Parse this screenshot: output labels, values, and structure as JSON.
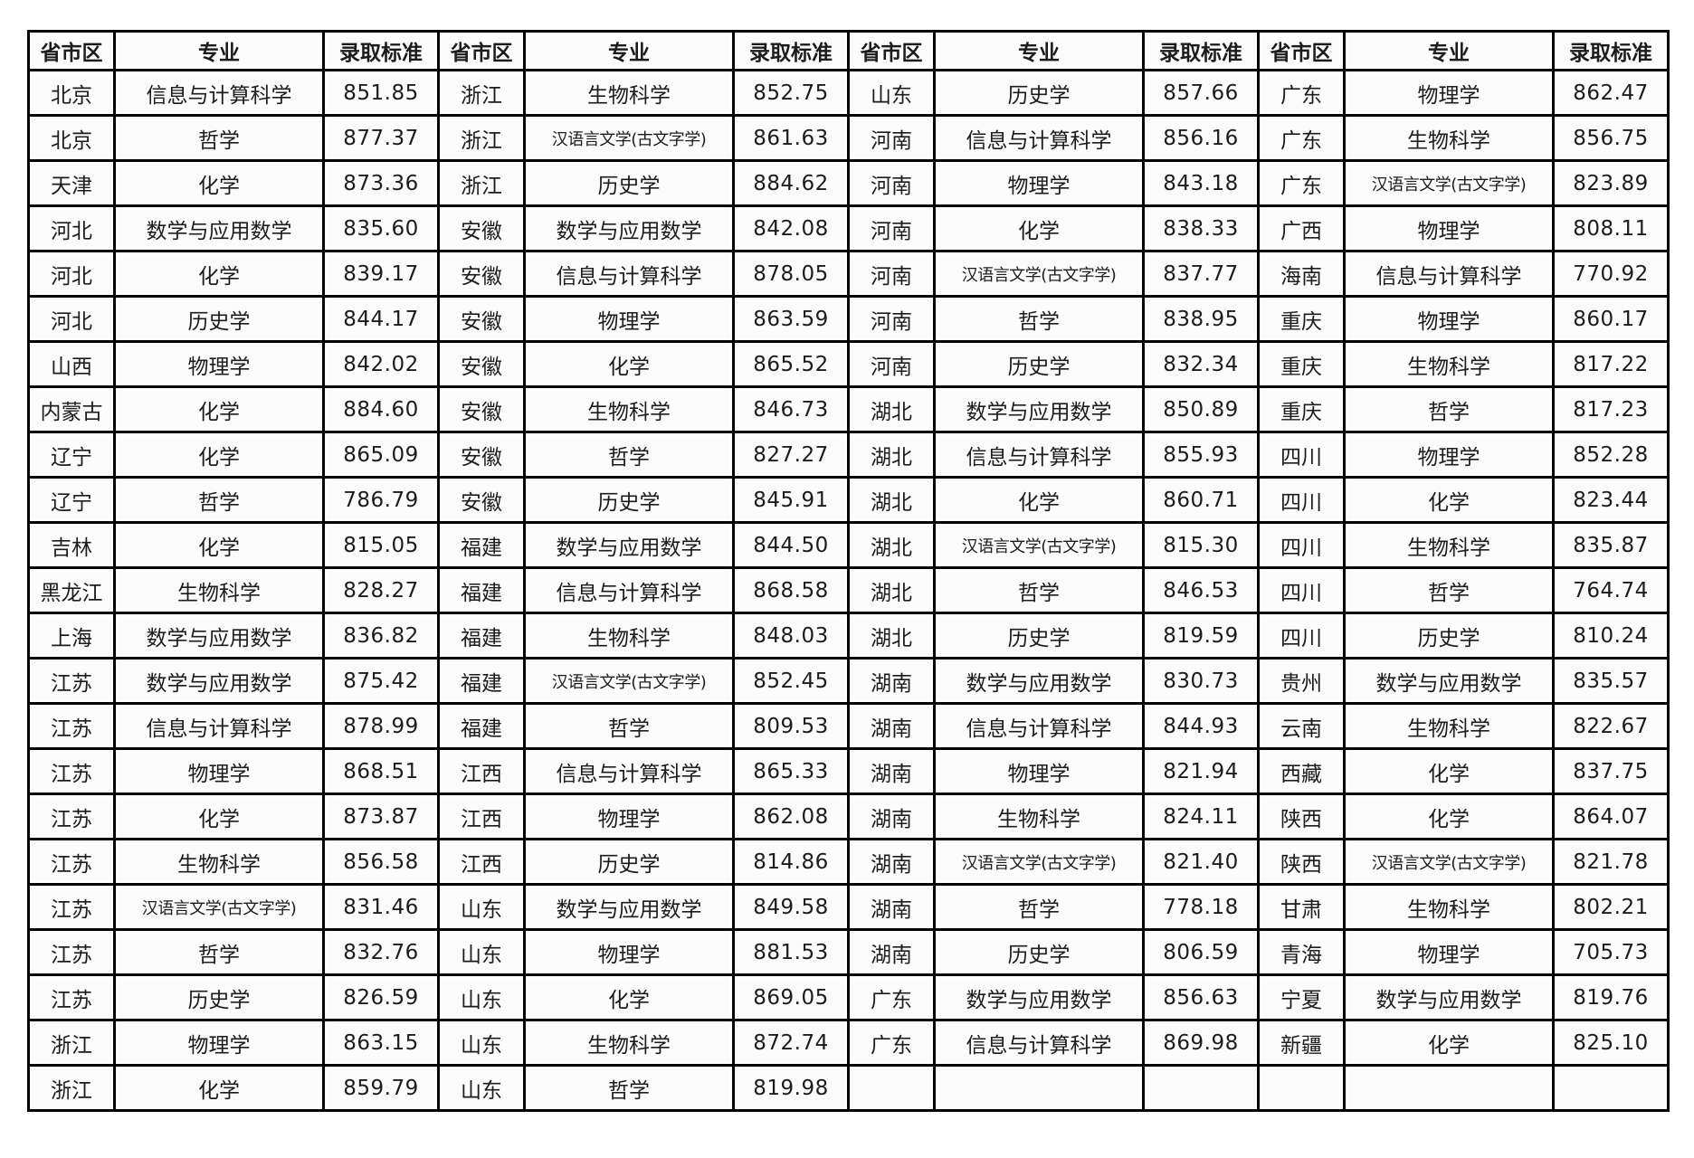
{
  "chart_data": {
    "type": "table",
    "title": "",
    "headers": [
      "省市区",
      "专业",
      "录取标准",
      "省市区",
      "专业",
      "录取标准",
      "省市区",
      "专业",
      "录取标准",
      "省市区",
      "专业",
      "录取标准"
    ],
    "rows": [
      [
        "北京",
        "信息与计算科学",
        "851.85",
        "浙江",
        "生物科学",
        "852.75",
        "山东",
        "历史学",
        "857.66",
        "广东",
        "物理学",
        "862.47"
      ],
      [
        "北京",
        "哲学",
        "877.37",
        "浙江",
        "汉语言文学(古文字学)",
        "861.63",
        "河南",
        "信息与计算科学",
        "856.16",
        "广东",
        "生物科学",
        "856.75"
      ],
      [
        "天津",
        "化学",
        "873.36",
        "浙江",
        "历史学",
        "884.62",
        "河南",
        "物理学",
        "843.18",
        "广东",
        "汉语言文学(古文字学)",
        "823.89"
      ],
      [
        "河北",
        "数学与应用数学",
        "835.60",
        "安徽",
        "数学与应用数学",
        "842.08",
        "河南",
        "化学",
        "838.33",
        "广西",
        "物理学",
        "808.11"
      ],
      [
        "河北",
        "化学",
        "839.17",
        "安徽",
        "信息与计算科学",
        "878.05",
        "河南",
        "汉语言文学(古文字学)",
        "837.77",
        "海南",
        "信息与计算科学",
        "770.92"
      ],
      [
        "河北",
        "历史学",
        "844.17",
        "安徽",
        "物理学",
        "863.59",
        "河南",
        "哲学",
        "838.95",
        "重庆",
        "物理学",
        "860.17"
      ],
      [
        "山西",
        "物理学",
        "842.02",
        "安徽",
        "化学",
        "865.52",
        "河南",
        "历史学",
        "832.34",
        "重庆",
        "生物科学",
        "817.22"
      ],
      [
        "内蒙古",
        "化学",
        "884.60",
        "安徽",
        "生物科学",
        "846.73",
        "湖北",
        "数学与应用数学",
        "850.89",
        "重庆",
        "哲学",
        "817.23"
      ],
      [
        "辽宁",
        "化学",
        "865.09",
        "安徽",
        "哲学",
        "827.27",
        "湖北",
        "信息与计算科学",
        "855.93",
        "四川",
        "物理学",
        "852.28"
      ],
      [
        "辽宁",
        "哲学",
        "786.79",
        "安徽",
        "历史学",
        "845.91",
        "湖北",
        "化学",
        "860.71",
        "四川",
        "化学",
        "823.44"
      ],
      [
        "吉林",
        "化学",
        "815.05",
        "福建",
        "数学与应用数学",
        "844.50",
        "湖北",
        "汉语言文学(古文字学)",
        "815.30",
        "四川",
        "生物科学",
        "835.87"
      ],
      [
        "黑龙江",
        "生物科学",
        "828.27",
        "福建",
        "信息与计算科学",
        "868.58",
        "湖北",
        "哲学",
        "846.53",
        "四川",
        "哲学",
        "764.74"
      ],
      [
        "上海",
        "数学与应用数学",
        "836.82",
        "福建",
        "生物科学",
        "848.03",
        "湖北",
        "历史学",
        "819.59",
        "四川",
        "历史学",
        "810.24"
      ],
      [
        "江苏",
        "数学与应用数学",
        "875.42",
        "福建",
        "汉语言文学(古文字学)",
        "852.45",
        "湖南",
        "数学与应用数学",
        "830.73",
        "贵州",
        "数学与应用数学",
        "835.57"
      ],
      [
        "江苏",
        "信息与计算科学",
        "878.99",
        "福建",
        "哲学",
        "809.53",
        "湖南",
        "信息与计算科学",
        "844.93",
        "云南",
        "生物科学",
        "822.67"
      ],
      [
        "江苏",
        "物理学",
        "868.51",
        "江西",
        "信息与计算科学",
        "865.33",
        "湖南",
        "物理学",
        "821.94",
        "西藏",
        "化学",
        "837.75"
      ],
      [
        "江苏",
        "化学",
        "873.87",
        "江西",
        "物理学",
        "862.08",
        "湖南",
        "生物科学",
        "824.11",
        "陕西",
        "化学",
        "864.07"
      ],
      [
        "江苏",
        "生物科学",
        "856.58",
        "江西",
        "历史学",
        "814.86",
        "湖南",
        "汉语言文学(古文字学)",
        "821.40",
        "陕西",
        "汉语言文学(古文字学)",
        "821.78"
      ],
      [
        "江苏",
        "汉语言文学(古文字学)",
        "831.46",
        "山东",
        "数学与应用数学",
        "849.58",
        "湖南",
        "哲学",
        "778.18",
        "甘肃",
        "生物科学",
        "802.21"
      ],
      [
        "江苏",
        "哲学",
        "832.76",
        "山东",
        "物理学",
        "881.53",
        "湖南",
        "历史学",
        "806.59",
        "青海",
        "物理学",
        "705.73"
      ],
      [
        "江苏",
        "历史学",
        "826.59",
        "山东",
        "化学",
        "869.05",
        "广东",
        "数学与应用数学",
        "856.63",
        "宁夏",
        "数学与应用数学",
        "819.76"
      ],
      [
        "浙江",
        "物理学",
        "863.15",
        "山东",
        "生物科学",
        "872.74",
        "广东",
        "信息与计算科学",
        "869.98",
        "新疆",
        "化学",
        "825.10"
      ],
      [
        "浙江",
        "化学",
        "859.79",
        "山东",
        "哲学",
        "819.98",
        "",
        "",
        "",
        "",
        "",
        ""
      ]
    ]
  }
}
